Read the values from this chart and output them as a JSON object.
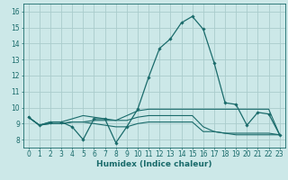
{
  "xlabel": "Humidex (Indice chaleur)",
  "xlim": [
    -0.5,
    23.5
  ],
  "ylim": [
    7.5,
    16.5
  ],
  "xticks": [
    0,
    1,
    2,
    3,
    4,
    5,
    6,
    7,
    8,
    9,
    10,
    11,
    12,
    13,
    14,
    15,
    16,
    17,
    18,
    19,
    20,
    21,
    22,
    23
  ],
  "yticks": [
    8,
    9,
    10,
    11,
    12,
    13,
    14,
    15,
    16
  ],
  "background_color": "#cce8e8",
  "grid_color": "#aacccc",
  "line_color": "#1a6b6b",
  "main_line": [
    9.4,
    8.9,
    9.1,
    9.1,
    8.8,
    8.0,
    9.3,
    9.3,
    7.8,
    8.8,
    9.9,
    11.9,
    13.7,
    14.3,
    15.3,
    15.7,
    14.9,
    12.8,
    10.3,
    10.2,
    8.9,
    9.7,
    9.6,
    8.3
  ],
  "other_lines": [
    [
      9.4,
      8.9,
      9.1,
      9.1,
      9.3,
      9.5,
      9.4,
      9.3,
      9.2,
      9.5,
      9.8,
      9.9,
      9.9,
      9.9,
      9.9,
      9.9,
      9.9,
      9.9,
      9.9,
      9.9,
      9.9,
      9.9,
      9.9,
      8.3
    ],
    [
      9.4,
      8.9,
      9.0,
      9.0,
      9.1,
      9.1,
      9.2,
      9.2,
      9.2,
      9.2,
      9.4,
      9.5,
      9.5,
      9.5,
      9.5,
      9.5,
      8.8,
      8.5,
      8.4,
      8.4,
      8.4,
      8.4,
      8.4,
      8.3
    ],
    [
      9.4,
      8.9,
      9.0,
      9.0,
      9.1,
      9.1,
      9.0,
      8.9,
      8.8,
      8.8,
      9.0,
      9.1,
      9.1,
      9.1,
      9.1,
      9.1,
      8.5,
      8.5,
      8.4,
      8.3,
      8.3,
      8.3,
      8.3,
      8.3
    ]
  ]
}
